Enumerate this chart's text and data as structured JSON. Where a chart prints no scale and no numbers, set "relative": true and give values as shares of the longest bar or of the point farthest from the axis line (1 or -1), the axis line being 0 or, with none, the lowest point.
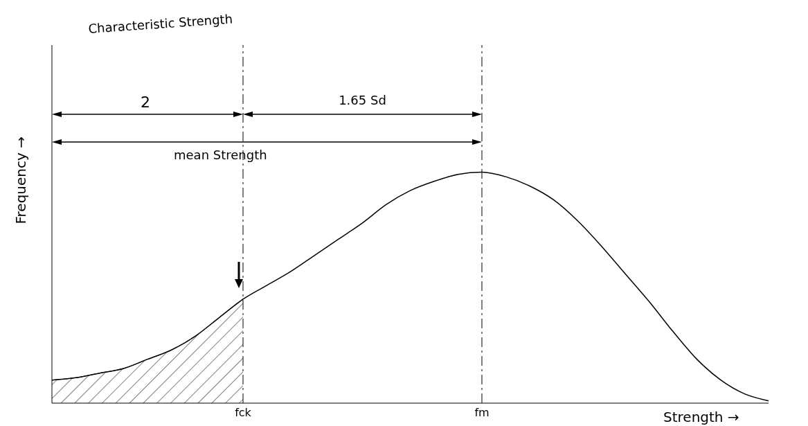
{
  "chart_data": {
    "type": "line",
    "relative": true,
    "xlabel": "Strength →",
    "ylabel": "Frequency →",
    "categories": [
      null,
      null,
      null,
      null,
      null,
      null,
      null,
      null,
      "fck",
      null,
      null,
      null,
      null,
      null,
      null,
      null,
      null,
      null,
      "fm",
      null,
      null,
      null,
      null,
      null,
      null,
      null,
      null,
      null,
      null,
      null,
      null
    ],
    "series": [
      {
        "color": "#000000",
        "values": [
          0.1,
          0.11,
          0.13,
          0.15,
          0.19,
          0.23,
          0.29,
          0.37,
          0.45,
          0.51,
          0.57,
          0.64,
          0.71,
          0.78,
          0.86,
          0.92,
          0.96,
          0.99,
          1,
          0.98,
          0.94,
          0.88,
          0.79,
          0.68,
          0.56,
          0.44,
          0.31,
          0.19,
          0.1,
          0.04,
          0.01
        ]
      },
      {
        "type": "area",
        "color": "#000000",
        "values": [
          0.1,
          0.11,
          0.13,
          0.15,
          0.19,
          0.23,
          0.29,
          0.37,
          0.45,
          null,
          null,
          null,
          null,
          null,
          null,
          null,
          null,
          null,
          null,
          null,
          null,
          null,
          null,
          null,
          null,
          null,
          null,
          null,
          null,
          null,
          null
        ]
      }
    ],
    "ref_lines": [
      {
        "axis": "x",
        "value": "fck",
        "line_style": "dashed",
        "color": "#000000"
      },
      {
        "axis": "x",
        "value": "fm",
        "line_style": "dashed",
        "color": "#000000"
      }
    ],
    "annotations": [
      "Characteristic Strength",
      "2",
      "1.65 Sd",
      "mean Strength"
    ],
    "marker": "none",
    "line_style": "solid"
  }
}
